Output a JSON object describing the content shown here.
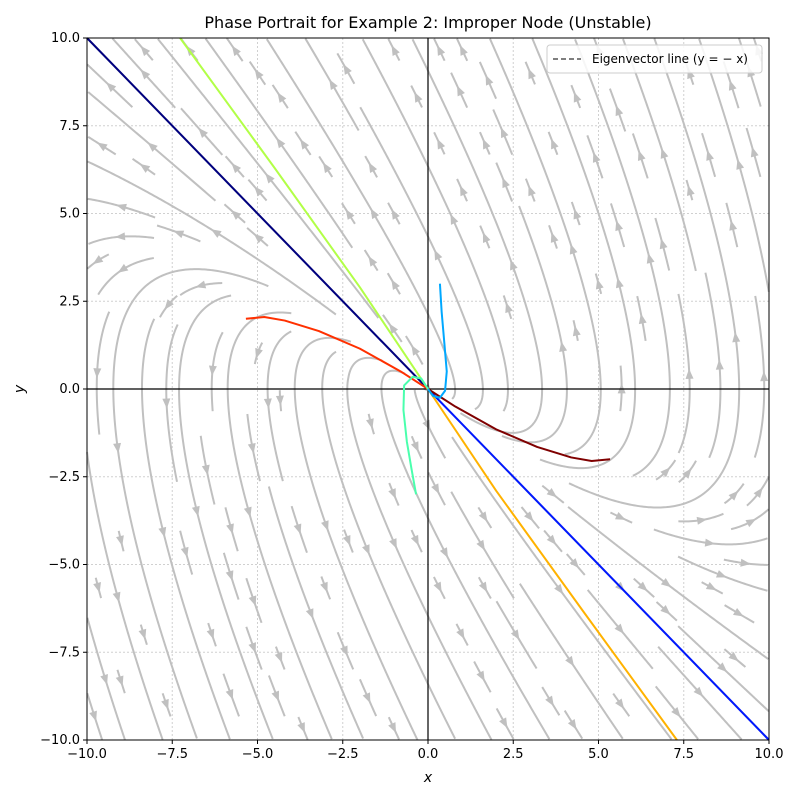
{
  "chart_data": {
    "type": "line",
    "title": "Phase Portrait for Example 2: Improper Node (Unstable)",
    "xlabel": "x",
    "ylabel": "y",
    "xlim": [
      -10,
      10
    ],
    "ylim": [
      -10,
      10
    ],
    "xticks": [
      "−10.0",
      "−7.5",
      "−5.0",
      "−2.5",
      "0.0",
      "2.5",
      "5.0",
      "7.5",
      "10.0"
    ],
    "yticks": [
      "−10.0",
      "−7.5",
      "−5.0",
      "−2.5",
      "0.0",
      "2.5",
      "5.0",
      "7.5",
      "10.0"
    ],
    "xtick_values": [
      -10,
      -7.5,
      -5,
      -2.5,
      0,
      2.5,
      5,
      7.5,
      10
    ],
    "ytick_values": [
      -10,
      -7.5,
      -5,
      -2.5,
      0,
      2.5,
      5,
      7.5,
      10
    ],
    "grid": true,
    "legend": {
      "placement": "top-right",
      "entries": [
        {
          "label": "Eigenvector line (y = − x)",
          "style": "dashed",
          "color": "#555555"
        }
      ]
    },
    "eigenvector_line": {
      "x": [
        -10,
        10
      ],
      "y": [
        10,
        -10
      ]
    },
    "streamline_color": "#c0c0c0",
    "trajectories": [
      {
        "color": "#00007f",
        "x": [
          0,
          -10
        ],
        "y": [
          0,
          10
        ]
      },
      {
        "color": "#0018ff",
        "x": [
          0,
          10
        ],
        "y": [
          0,
          -10
        ]
      },
      {
        "color": "#b2ff47",
        "x": [
          0,
          -2,
          -4.5,
          -7.27
        ],
        "y": [
          0,
          2.9,
          6.3,
          10
        ]
      },
      {
        "color": "#ffb200",
        "x": [
          0,
          2,
          4.6,
          7.3
        ],
        "y": [
          0,
          -2.9,
          -6.4,
          -10
        ]
      },
      {
        "color": "#ff3000",
        "x": [
          0,
          -0.8,
          -2,
          -3.2,
          -4.2,
          -4.8,
          -5.34
        ],
        "y": [
          0,
          0.5,
          1.15,
          1.65,
          1.95,
          2.05,
          2.0
        ]
      },
      {
        "color": "#7f0000",
        "x": [
          0,
          0.8,
          2,
          3.2,
          4.2,
          4.8,
          5.34
        ],
        "y": [
          0,
          -0.5,
          -1.15,
          -1.65,
          -1.95,
          -2.05,
          -2.0
        ]
      },
      {
        "color": "#00a8ff",
        "x": [
          0,
          0.15,
          0.35,
          0.5,
          0.55,
          0.48,
          0.4,
          0.35
        ],
        "y": [
          0,
          -0.2,
          -0.25,
          -0.05,
          0.5,
          1.3,
          2.2,
          3.0
        ]
      },
      {
        "color": "#4affad",
        "x": [
          0,
          -0.2,
          -0.45,
          -0.7,
          -0.72,
          -0.62,
          -0.48,
          -0.35
        ],
        "y": [
          0,
          0.3,
          0.35,
          0.1,
          -0.6,
          -1.5,
          -2.3,
          -3.0
        ]
      }
    ]
  }
}
